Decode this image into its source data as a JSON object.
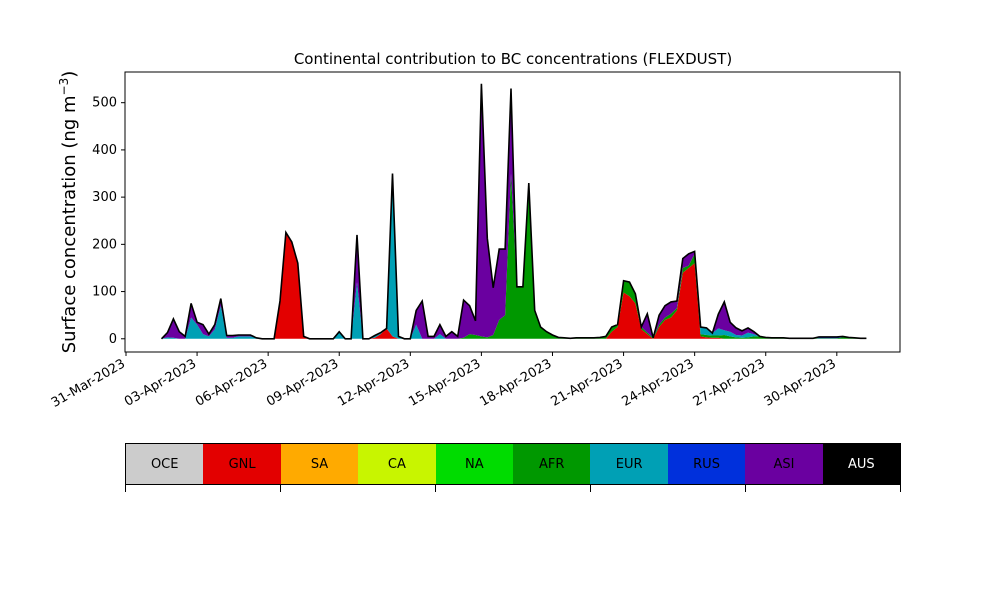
{
  "chart_data": {
    "type": "area",
    "stacked": true,
    "title": "Continental contribution to BC concentrations (FLEXDUST)",
    "ylabel": "Surface concentration (ng m",
    "ylabel_sup": "−3",
    "ylabel_close": ")",
    "ylim": [
      -28,
      565
    ],
    "yticks": [
      0,
      100,
      200,
      300,
      400,
      500
    ],
    "xlim_days": [
      "2023-03-30T23:00",
      "2023-05-02T16:00"
    ],
    "xticks": [
      "31-Mar-2023",
      "03-Apr-2023",
      "06-Apr-2023",
      "09-Apr-2023",
      "12-Apr-2023",
      "15-Apr-2023",
      "18-Apr-2023",
      "21-Apr-2023",
      "24-Apr-2023",
      "27-Apr-2023",
      "30-Apr-2023"
    ],
    "xtick_dates": [
      "2023-03-31",
      "2023-04-03",
      "2023-04-06",
      "2023-04-09",
      "2023-04-12",
      "2023-04-15",
      "2023-04-18",
      "2023-04-21",
      "2023-04-24",
      "2023-04-27",
      "2023-04-30"
    ],
    "x": [
      "2023-04-01T12:00",
      "2023-04-01T18:00",
      "2023-04-02T00:00",
      "2023-04-02T06:00",
      "2023-04-02T12:00",
      "2023-04-02T18:00",
      "2023-04-03T00:00",
      "2023-04-03T06:00",
      "2023-04-03T12:00",
      "2023-04-03T18:00",
      "2023-04-04T00:00",
      "2023-04-04T06:00",
      "2023-04-04T12:00",
      "2023-04-04T18:00",
      "2023-04-05T00:00",
      "2023-04-05T06:00",
      "2023-04-05T12:00",
      "2023-04-05T18:00",
      "2023-04-06T00:00",
      "2023-04-06T06:00",
      "2023-04-06T12:00",
      "2023-04-06T18:00",
      "2023-04-07T00:00",
      "2023-04-07T06:00",
      "2023-04-07T12:00",
      "2023-04-07T18:00",
      "2023-04-08T00:00",
      "2023-04-08T06:00",
      "2023-04-08T12:00",
      "2023-04-08T18:00",
      "2023-04-09T00:00",
      "2023-04-09T06:00",
      "2023-04-09T12:00",
      "2023-04-09T18:00",
      "2023-04-10T00:00",
      "2023-04-10T06:00",
      "2023-04-10T12:00",
      "2023-04-10T18:00",
      "2023-04-11T00:00",
      "2023-04-11T06:00",
      "2023-04-11T12:00",
      "2023-04-11T18:00",
      "2023-04-12T00:00",
      "2023-04-12T06:00",
      "2023-04-12T12:00",
      "2023-04-12T18:00",
      "2023-04-13T00:00",
      "2023-04-13T06:00",
      "2023-04-13T12:00",
      "2023-04-13T18:00",
      "2023-04-14T00:00",
      "2023-04-14T06:00",
      "2023-04-14T12:00",
      "2023-04-14T18:00",
      "2023-04-15T00:00",
      "2023-04-15T06:00",
      "2023-04-15T12:00",
      "2023-04-15T18:00",
      "2023-04-16T00:00",
      "2023-04-16T06:00",
      "2023-04-16T12:00",
      "2023-04-16T18:00",
      "2023-04-17T00:00",
      "2023-04-17T06:00",
      "2023-04-17T12:00",
      "2023-04-17T18:00",
      "2023-04-18T00:00",
      "2023-04-18T06:00",
      "2023-04-18T12:00",
      "2023-04-18T18:00",
      "2023-04-19T00:00",
      "2023-04-19T06:00",
      "2023-04-19T12:00",
      "2023-04-19T18:00",
      "2023-04-20T00:00",
      "2023-04-20T06:00",
      "2023-04-20T12:00",
      "2023-04-20T18:00",
      "2023-04-21T00:00",
      "2023-04-21T06:00",
      "2023-04-21T12:00",
      "2023-04-21T18:00",
      "2023-04-22T00:00",
      "2023-04-22T06:00",
      "2023-04-22T12:00",
      "2023-04-22T18:00",
      "2023-04-23T00:00",
      "2023-04-23T06:00",
      "2023-04-23T12:00",
      "2023-04-23T18:00",
      "2023-04-24T00:00",
      "2023-04-24T06:00",
      "2023-04-24T12:00",
      "2023-04-24T18:00",
      "2023-04-25T00:00",
      "2023-04-25T06:00",
      "2023-04-25T12:00",
      "2023-04-25T18:00",
      "2023-04-26T00:00",
      "2023-04-26T06:00",
      "2023-04-26T12:00",
      "2023-04-26T18:00",
      "2023-04-27T00:00",
      "2023-04-27T06:00",
      "2023-04-27T12:00",
      "2023-04-27T18:00",
      "2023-04-28T00:00",
      "2023-04-28T06:00",
      "2023-04-28T12:00",
      "2023-04-28T18:00",
      "2023-04-29T00:00",
      "2023-04-29T06:00",
      "2023-04-29T12:00",
      "2023-04-29T18:00",
      "2023-04-30T00:00",
      "2023-04-30T06:00",
      "2023-04-30T12:00",
      "2023-04-30T18:00",
      "2023-05-01T00:00",
      "2023-05-01T06:00"
    ],
    "series": [
      {
        "name": "GNL",
        "color": "#e30000",
        "values": [
          0,
          0,
          0,
          0,
          0,
          0,
          0,
          0,
          0,
          0,
          0,
          0,
          0,
          0,
          0,
          0,
          0,
          0,
          0,
          0,
          80,
          225,
          205,
          160,
          5,
          0,
          0,
          0,
          0,
          0,
          0,
          0,
          0,
          0,
          0,
          0,
          2,
          10,
          22,
          5,
          0,
          0,
          0,
          0,
          0,
          0,
          0,
          0,
          0,
          0,
          0,
          0,
          0,
          0,
          0,
          0,
          0,
          0,
          0,
          0,
          0,
          0,
          0,
          0,
          0,
          0,
          0,
          0,
          0,
          0,
          0,
          0,
          0,
          0,
          0,
          0,
          15,
          25,
          98,
          90,
          75,
          20,
          10,
          0,
          25,
          40,
          45,
          60,
          140,
          150,
          160,
          5,
          3,
          2,
          2,
          0,
          0,
          0,
          0,
          0,
          0,
          0,
          0,
          0,
          0,
          0,
          0,
          0,
          0,
          0,
          0,
          0,
          0,
          0,
          0,
          0,
          0,
          0,
          0,
          0
        ]
      },
      {
        "name": "CA",
        "color": "#c8f500",
        "values": [
          0,
          0,
          0,
          0,
          0,
          0,
          0,
          0,
          0,
          0,
          0,
          0,
          0,
          0,
          0,
          0,
          0,
          0,
          0,
          0,
          0,
          0,
          0,
          0,
          0,
          0,
          0,
          0,
          0,
          0,
          0,
          0,
          0,
          0,
          0,
          0,
          0,
          0,
          0,
          0,
          0,
          0,
          0,
          0,
          0,
          0,
          0,
          0,
          0,
          0,
          0,
          0,
          0,
          0,
          0,
          0,
          0,
          0,
          0,
          0,
          0,
          0,
          0,
          0,
          0,
          0,
          0,
          0,
          0,
          0,
          0,
          0,
          0,
          0,
          0,
          0,
          0,
          0,
          0,
          0,
          0,
          0,
          0,
          0,
          0,
          0,
          0,
          0,
          0,
          0,
          0,
          0,
          0,
          0,
          0,
          0,
          0,
          0,
          0,
          0,
          0,
          0,
          0,
          0,
          0,
          0,
          0,
          0,
          0,
          0,
          0,
          0,
          0,
          0,
          0,
          0,
          0,
          0,
          0,
          0
        ]
      },
      {
        "name": "NA",
        "color": "#00dc00",
        "values": [
          0,
          0,
          0,
          0,
          0,
          0,
          0,
          0,
          0,
          0,
          0,
          0,
          0,
          0,
          0,
          0,
          0,
          0,
          0,
          0,
          0,
          0,
          0,
          0,
          0,
          0,
          0,
          0,
          0,
          0,
          0,
          0,
          0,
          0,
          0,
          0,
          0,
          0,
          0,
          0,
          0,
          0,
          0,
          0,
          0,
          0,
          0,
          0,
          0,
          0,
          0,
          0,
          0,
          0,
          0,
          0,
          0,
          0,
          0,
          0,
          0,
          0,
          0,
          0,
          0,
          0,
          0,
          0,
          0,
          0,
          0,
          0,
          0,
          0,
          0,
          0,
          0,
          0,
          0,
          0,
          0,
          0,
          0,
          0,
          0,
          0,
          0,
          0,
          0,
          0,
          0,
          0,
          0,
          0,
          0,
          0,
          0,
          0,
          0,
          0,
          0,
          0,
          0,
          0,
          0,
          0,
          0,
          0,
          0,
          0,
          0,
          0,
          0,
          0,
          0,
          0,
          0,
          0,
          0,
          0
        ]
      },
      {
        "name": "AFR",
        "color": "#009800",
        "values": [
          0,
          0,
          0,
          0,
          0,
          0,
          0,
          0,
          0,
          0,
          0,
          0,
          0,
          0,
          0,
          0,
          0,
          0,
          0,
          0,
          0,
          0,
          0,
          0,
          0,
          0,
          0,
          0,
          0,
          0,
          0,
          0,
          0,
          0,
          0,
          0,
          0,
          0,
          0,
          0,
          0,
          0,
          0,
          0,
          0,
          0,
          0,
          0,
          0,
          0,
          0,
          2,
          10,
          8,
          5,
          3,
          8,
          40,
          50,
          350,
          110,
          110,
          330,
          60,
          25,
          15,
          8,
          3,
          2,
          1,
          2,
          2,
          2,
          2,
          3,
          5,
          10,
          5,
          25,
          30,
          20,
          5,
          3,
          2,
          5,
          5,
          8,
          5,
          10,
          5,
          20,
          5,
          5,
          5,
          5,
          8,
          5,
          3,
          2,
          3,
          5,
          5,
          3,
          2,
          2,
          2,
          1,
          1,
          1,
          1,
          1,
          1,
          1,
          1,
          1,
          3,
          3,
          2,
          1,
          1
        ]
      },
      {
        "name": "EUR",
        "color": "#00a0b5",
        "values": [
          0,
          3,
          2,
          0,
          0,
          45,
          30,
          10,
          5,
          20,
          70,
          2,
          2,
          5,
          5,
          5,
          2,
          0,
          0,
          0,
          0,
          0,
          0,
          0,
          0,
          0,
          0,
          0,
          0,
          0,
          15,
          0,
          0,
          120,
          0,
          0,
          5,
          3,
          0,
          345,
          5,
          0,
          0,
          30,
          0,
          0,
          0,
          10,
          0,
          0,
          0,
          0,
          0,
          0,
          0,
          0,
          0,
          0,
          0,
          0,
          0,
          0,
          0,
          0,
          0,
          0,
          0,
          0,
          0,
          0,
          0,
          0,
          0,
          0,
          0,
          0,
          0,
          0,
          0,
          0,
          0,
          0,
          0,
          0,
          0,
          0,
          0,
          0,
          0,
          0,
          0,
          15,
          15,
          5,
          15,
          10,
          10,
          5,
          5,
          10,
          5,
          0,
          0,
          0,
          0,
          0,
          0,
          0,
          0,
          0,
          0,
          0,
          0,
          0,
          0,
          0,
          0,
          0,
          0,
          0
        ]
      },
      {
        "name": "RUS",
        "color": "#0030dc",
        "values": [
          0,
          0,
          0,
          0,
          0,
          0,
          0,
          0,
          0,
          0,
          0,
          0,
          0,
          0,
          0,
          0,
          0,
          0,
          0,
          0,
          0,
          0,
          0,
          0,
          0,
          0,
          0,
          0,
          0,
          0,
          0,
          0,
          0,
          0,
          0,
          0,
          0,
          0,
          0,
          0,
          0,
          0,
          0,
          0,
          0,
          0,
          0,
          0,
          0,
          0,
          0,
          0,
          0,
          0,
          0,
          0,
          0,
          0,
          0,
          0,
          0,
          0,
          0,
          0,
          0,
          0,
          0,
          0,
          0,
          0,
          0,
          0,
          0,
          0,
          0,
          0,
          0,
          0,
          0,
          0,
          0,
          0,
          0,
          0,
          0,
          0,
          0,
          0,
          0,
          0,
          0,
          0,
          0,
          0,
          0,
          0,
          0,
          0,
          0,
          0,
          0,
          0,
          0,
          0,
          0,
          0,
          0,
          0,
          0,
          0,
          0,
          3,
          3,
          3,
          3,
          2,
          0,
          0,
          0,
          0
        ]
      },
      {
        "name": "ASI",
        "color": "#6a00a0",
        "values": [
          0,
          10,
          40,
          15,
          5,
          30,
          5,
          20,
          5,
          10,
          15,
          5,
          5,
          3,
          3,
          3,
          0,
          0,
          0,
          0,
          0,
          0,
          0,
          0,
          0,
          0,
          0,
          0,
          0,
          0,
          0,
          0,
          0,
          100,
          0,
          0,
          0,
          0,
          0,
          0,
          0,
          0,
          0,
          30,
          80,
          5,
          5,
          20,
          5,
          15,
          5,
          80,
          60,
          30,
          535,
          210,
          100,
          150,
          140,
          180,
          0,
          0,
          0,
          0,
          0,
          0,
          0,
          0,
          0,
          0,
          0,
          0,
          0,
          0,
          0,
          0,
          0,
          0,
          0,
          0,
          0,
          0,
          40,
          0,
          20,
          25,
          25,
          15,
          20,
          25,
          5,
          0,
          0,
          0,
          30,
          60,
          20,
          15,
          10,
          10,
          5,
          0,
          0,
          0,
          0,
          0,
          0,
          0,
          0,
          0,
          0,
          0,
          0,
          0,
          0,
          0,
          0,
          0,
          0,
          0
        ]
      }
    ],
    "legend": [
      "OCE",
      "GNL",
      "SA",
      "CA",
      "NA",
      "AFR",
      "EUR",
      "RUS",
      "ASI",
      "AUS"
    ],
    "legend_colors": [
      "#cccccc",
      "#e30000",
      "#ffaa00",
      "#c8f500",
      "#00dc00",
      "#009800",
      "#00a0b5",
      "#0030dc",
      "#6a00a0",
      "#000000"
    ],
    "legend_text_colors": [
      "#000000",
      "#000000",
      "#000000",
      "#000000",
      "#000000",
      "#000000",
      "#000000",
      "#000000",
      "#000000",
      "#ffffff"
    ],
    "grid": false,
    "outline_color": "#000000"
  }
}
